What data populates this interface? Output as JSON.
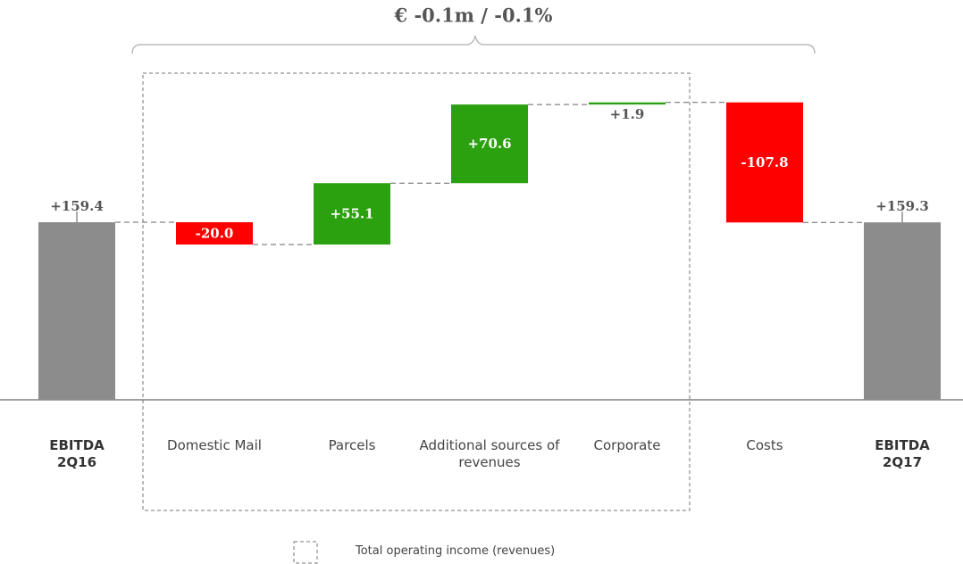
{
  "chart_data": {
    "type": "waterfall",
    "annotation": "€ -0.1m / -0.1%",
    "legend_label": "Total operating income (revenues)",
    "categories": [
      "EBITDA 2Q16",
      "Domestic Mail",
      "Parcels",
      "Additional sources of revenues",
      "Corporate",
      "Costs",
      "EBITDA 2Q17"
    ],
    "measure": [
      "absolute",
      "relative",
      "relative",
      "relative",
      "relative",
      "relative",
      "absolute"
    ],
    "values": [
      159.4,
      -20.0,
      55.1,
      70.6,
      1.9,
      -107.8,
      159.3
    ],
    "value_labels": [
      "+159.4",
      "-20.0",
      "+55.1",
      "+70.6",
      "+1.9",
      "-107.8",
      "+159.3"
    ],
    "total_color": "#8c8c8c",
    "increase_color": "#2ca10f",
    "decrease_color": "#ff0000",
    "ylim": [
      0,
      270
    ]
  }
}
